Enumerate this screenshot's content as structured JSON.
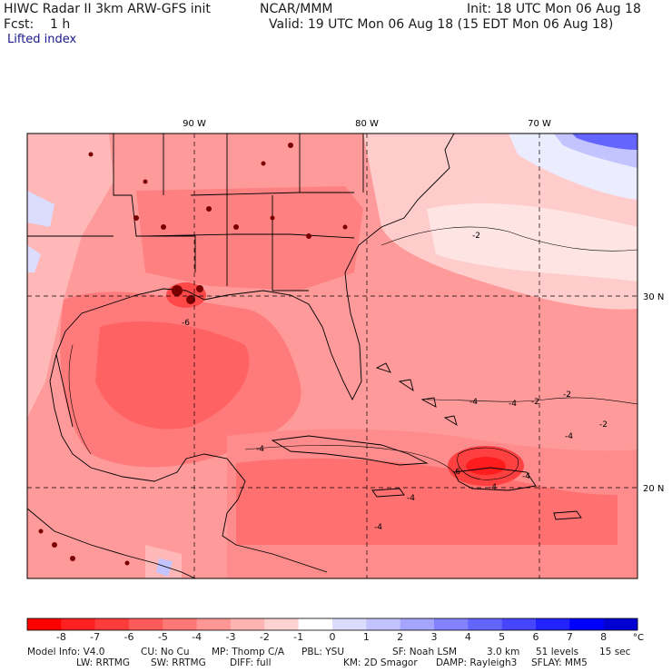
{
  "header": {
    "line1_left": "HIWC Radar II 3km ARW-GFS init",
    "line1_mid": "NCAR/MMM",
    "line1_right": "Init: 18 UTC Mon 06 Aug 18",
    "line2_left": "Fcst:    1 h",
    "line2_right": "Valid: 19 UTC Mon 06 Aug 18 (15 EDT Mon 06 Aug 18)",
    "field_name": "Lifted index"
  },
  "map": {
    "lon_labels": [
      "90 W",
      "80 W",
      "70 W"
    ],
    "lat_labels": [
      "30 N",
      "20 N"
    ],
    "contour_labels": [
      "-2",
      "-2",
      "-2",
      "-2",
      "-4",
      "-4",
      "-4",
      "-4",
      "-4",
      "-4",
      "-4",
      "-4",
      "-6",
      "-6"
    ]
  },
  "colorbar": {
    "labels": [
      "-8",
      "-7",
      "-6",
      "-5",
      "-4",
      "-3",
      "-2",
      "-1",
      "0",
      "1",
      "2",
      "3",
      "4",
      "5",
      "6",
      "7",
      "8"
    ],
    "unit": "°C",
    "colors": [
      "#ff0000",
      "#ff2020",
      "#ff3c3c",
      "#ff5a5a",
      "#ff7878",
      "#ff9696",
      "#ffb4b4",
      "#ffd2d2",
      "#ffffff",
      "#dcdcff",
      "#c3c3ff",
      "#a5a5ff",
      "#8282ff",
      "#6464ff",
      "#4646ff",
      "#2323ff",
      "#0000ff",
      "#0000d2"
    ]
  },
  "footer": {
    "r1_model": "Model Info: V4.0",
    "r1_cu": "CU: No Cu",
    "r1_mp": "MP: Thomp C/A",
    "r1_pbl": "PBL: YSU",
    "r1_sf": "SF: Noah LSM",
    "r1_res": "3.0 km",
    "r1_levels": "51 levels",
    "r1_dt": "15 sec",
    "r2_lw": "LW: RRTMG",
    "r2_sw": "SW: RRTMG",
    "r2_diff": "DIFF: full",
    "r2_km": "KM: 2D Smagor",
    "r2_damp": "DAMP: Rayleigh3",
    "r2_sflay": "SFLAY: MM5"
  }
}
